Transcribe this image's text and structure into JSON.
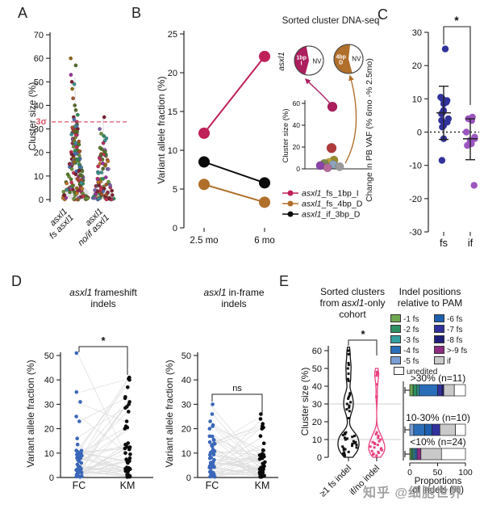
{
  "figure": {
    "watermark": "知乎 @细胞世界"
  },
  "panels": {
    "A": {
      "label": "A",
      "chart_data": {
        "type": "scatter",
        "ylabel": "Cluster size (%)",
        "ylim": [
          0,
          70
        ],
        "yticks": [
          0,
          10,
          20,
          30,
          40,
          50,
          60,
          70
        ],
        "threshold": {
          "value": 33,
          "label": "3σ",
          "color": "#d9576b"
        },
        "groups": [
          {
            "tick_lines": [
              "asxl1",
              "fs asxl1"
            ],
            "outliers": [
              60,
              57,
              53,
              50,
              49,
              47,
              43,
              40,
              38,
              36,
              35,
              34,
              33
            ],
            "n_dense": 150,
            "dense_max": 32
          },
          {
            "tick_lines": [
              "asxl1",
              "no/if asxl1"
            ],
            "outliers": [
              35,
              30,
              28,
              27,
              26,
              25,
              24
            ],
            "n_dense": 85,
            "dense_max": 22
          }
        ],
        "palette": [
          "#8e2a47",
          "#b5712a",
          "#6a8f3c",
          "#7b5ea7",
          "#3c8f8f",
          "#c13252",
          "#556b2f",
          "#8b6914",
          "#486fb0",
          "#993399",
          "#7a2030",
          "#2e8b57",
          "#a0522d",
          "#b03060",
          "#4f7a28"
        ]
      }
    },
    "B": {
      "label": "B",
      "chart_data": {
        "type": "line",
        "x_categories": [
          "2.5 mo",
          "6 mo"
        ],
        "ylabel": "Variant allele fraction (%)",
        "ylim": [
          0,
          25
        ],
        "yticks": [
          0,
          5,
          10,
          15,
          20,
          25
        ],
        "series": [
          {
            "gene": "asxl1",
            "suffix": "_fs_1bp_I",
            "color": "#c02058",
            "values": [
              12.2,
              22.1
            ]
          },
          {
            "gene": "asxl1",
            "suffix": "_fs_4bp_D",
            "color": "#b06f2b",
            "values": [
              5.6,
              3.3
            ]
          },
          {
            "gene": "asxl1",
            "suffix": "_if_3bp_D",
            "color": "#0a0a0a",
            "values": [
              8.5,
              5.8
            ]
          }
        ],
        "inset": {
          "title": "Sorted cluster DNA-seq",
          "gene_label": "asxl1",
          "pies": [
            {
              "slice_lines": [
                "1bp",
                "I"
              ],
              "other": "NV",
              "fraction": 0.43,
              "start_deg": 195,
              "color": "#ad1e5e"
            },
            {
              "slice_lines": [
                "4bp",
                "D"
              ],
              "other": "NV",
              "fraction": 0.56,
              "start_deg": 165,
              "color": "#b06f2b"
            }
          ],
          "scatter": {
            "ylabel": "Cluster size (%)",
            "ylim": [
              0,
              60
            ],
            "yticks": [
              0,
              20,
              40,
              60
            ],
            "points": [
              {
                "value": 57,
                "color": "#ad1e5e"
              },
              {
                "value": 19,
                "color": "#b03a3a"
              },
              {
                "value": 8,
                "color": "#9a8a2e"
              },
              {
                "value": 6,
                "color": "#b8a23c"
              },
              {
                "value": 5,
                "color": "#7a8a50"
              },
              {
                "value": 4,
                "color": "#8ca3b8"
              },
              {
                "value": 3,
                "color": "#8a44a8"
              },
              {
                "value": 2,
                "color": "#9a9a9a"
              },
              {
                "value": 1,
                "color": "#b56a9a"
              }
            ]
          }
        }
      }
    },
    "C": {
      "label": "C",
      "chart_data": {
        "type": "scatter",
        "ylabel": "Change in PB VAF (% 6mo -% 2.5mo)",
        "ylim": [
          -30,
          30
        ],
        "yticks": [
          30,
          20,
          10,
          0,
          -10,
          -20,
          -30
        ],
        "zero_line": true,
        "significance": "*",
        "groups": [
          {
            "name": "fs",
            "color": "#32329b",
            "points": [
              25,
              10.5,
              10,
              9.5,
              9,
              8.5,
              6.5,
              6,
              5.5,
              4,
              3.5,
              3,
              2,
              1.5,
              -2,
              -8.5
            ],
            "mean": 5.8,
            "err_top": 13.8,
            "err_bottom": -2.2
          },
          {
            "name": "if",
            "color": "#9b55c0",
            "points": [
              4.5,
              4,
              3.5,
              0,
              -1.5,
              -2,
              -2.5,
              -3,
              -3.5,
              -4,
              -16
            ],
            "mean": -2,
            "err_top": 4,
            "err_bottom": -8.3
          }
        ]
      }
    },
    "D": {
      "label": "D",
      "plots": [
        {
          "title": {
            "gene": "asxl1",
            "rest": "frameshift",
            "line2": "indels"
          },
          "significance": "*",
          "ylabel": "Variant allele fraction (%)",
          "ylim": [
            0,
            50
          ],
          "yticks": [
            0,
            10,
            20,
            30,
            40,
            50
          ],
          "x_categories": [
            "FC",
            "KM"
          ],
          "fc_color": "#3a67b8",
          "km_color": "#0a0a0a",
          "fc_outliers": [
            51,
            35,
            31,
            25,
            23,
            16,
            13.5
          ],
          "fc_n_dense": 40,
          "fc_dense_max": 11,
          "km_outliers": [
            41,
            40.5,
            40,
            37,
            33,
            32.5,
            31,
            30,
            29,
            28.5,
            27,
            23,
            21,
            20.5,
            20
          ],
          "km_n_dense": 32,
          "km_dense_max": 14
        },
        {
          "title": {
            "gene": "asxl1",
            "rest": "in-frame",
            "line2": "indels"
          },
          "significance": "ns",
          "ylabel": "Variant allele fraction (%)",
          "ylim": [
            0,
            50
          ],
          "yticks": [
            0,
            10,
            20,
            30,
            40,
            50
          ],
          "x_categories": [
            "FC",
            "KM"
          ],
          "fc_color": "#3a67b8",
          "km_color": "#0a0a0a",
          "fc_outliers": [
            30,
            26,
            23,
            21.5,
            21,
            20
          ],
          "fc_n_dense": 42,
          "fc_dense_max": 18,
          "km_outliers": [
            26,
            24,
            22,
            21,
            20.5,
            20,
            17,
            14
          ],
          "km_n_dense": 40,
          "km_dense_max": 13
        }
      ]
    },
    "E": {
      "label": "E",
      "violin": {
        "title": {
          "line1": "Sorted clusters",
          "line2_pre": "from",
          "line2_gene": "asxl1",
          "line2_post": "-only",
          "line3": "cohort"
        },
        "chart_data": {
          "type": "violin",
          "ylabel": "Cluster size (%)",
          "ylim": [
            0,
            60
          ],
          "yticks": [
            0,
            10,
            20,
            30,
            40,
            50,
            60
          ],
          "significance": "*",
          "gridlines": [
            10,
            30
          ],
          "groups": [
            {
              "name": "≥1 fs indel",
              "color": "#111111",
              "points": [
                60,
                58,
                53,
                52,
                50,
                47,
                44,
                43,
                36,
                35,
                34,
                33,
                31,
                30,
                29,
                28,
                27,
                26,
                22,
                14,
                13.5,
                13,
                12.5,
                12,
                11.5,
                11,
                10.5,
                10,
                9,
                8.5,
                8,
                7.5,
                7,
                6.5,
                6,
                5.5,
                5,
                4.5,
                4,
                3,
                2.5,
                2,
                1.5,
                1
              ]
            },
            {
              "name": "if/no indel",
              "color": "#e8417e",
              "points": [
                48,
                47,
                46,
                41,
                34,
                14,
                13,
                12,
                11,
                10,
                9,
                8.5,
                8,
                7.5,
                7,
                6,
                5.5,
                5,
                4.5,
                4,
                3.5,
                3,
                2.5,
                2,
                1.5,
                1
              ]
            }
          ]
        }
      },
      "bars": {
        "title_lines": [
          "Indel positions",
          "relative to PAM"
        ],
        "legend": [
          {
            "label": "-1 fs",
            "color": "#6fa850"
          },
          {
            "label": "-2 fs",
            "color": "#2e8f62"
          },
          {
            "label": "-3 fs",
            "color": "#35a0a0"
          },
          {
            "label": "-4 fs",
            "color": "#2a6db8"
          },
          {
            "label": "-5 fs",
            "color": "#7b9fd4"
          },
          {
            "label": "-6 fs",
            "color": "#1d5fae"
          },
          {
            "label": "-7 fs",
            "color": "#31319e"
          },
          {
            "label": "-8 fs",
            "color": "#1f1f7a"
          },
          {
            "label": ">-9 fs",
            "color": "#8e2d83"
          },
          {
            "label": "if",
            "color": "#c9c9c9"
          },
          {
            "label": "unedited",
            "color": "#ffffff"
          }
        ],
        "chart_data": {
          "type": "bar",
          "stacked": true,
          "xlabel_lines": [
            "Proportions",
            "of indels (%)"
          ],
          "xticks": [
            0,
            50,
            100
          ],
          "xlim": [
            0,
            100
          ],
          "bars": [
            {
              "label": ">30% (n=11)",
              "segments": [
                [
                  "-1 fs",
                  6
                ],
                [
                  "-2 fs",
                  7
                ],
                [
                  "-3 fs",
                  4
                ],
                [
                  "-4 fs",
                  33
                ],
                [
                  "-7 fs",
                  8
                ],
                [
                  "-8 fs",
                  3
                ],
                [
                  "if",
                  19
                ],
                [
                  "unedited",
                  20
                ]
              ]
            },
            {
              "label": "10-30% (n=10)",
              "segments": [
                [
                  "-5 fs",
                  7
                ],
                [
                  "-4 fs",
                  20
                ],
                [
                  "-6 fs",
                  13
                ],
                [
                  "-7 fs",
                  14
                ],
                [
                  "if",
                  28
                ],
                [
                  "unedited",
                  18
                ]
              ]
            },
            {
              "label": "<10% (n=24)",
              "segments": [
                [
                  "-1 fs",
                  3
                ],
                [
                  "-2 fs",
                  3
                ],
                [
                  "-3 fs",
                  3
                ],
                [
                  "-4 fs",
                  4
                ],
                [
                  ">-9 fs",
                  7
                ],
                [
                  "if",
                  37
                ],
                [
                  "unedited",
                  43
                ]
              ]
            }
          ]
        }
      }
    }
  }
}
